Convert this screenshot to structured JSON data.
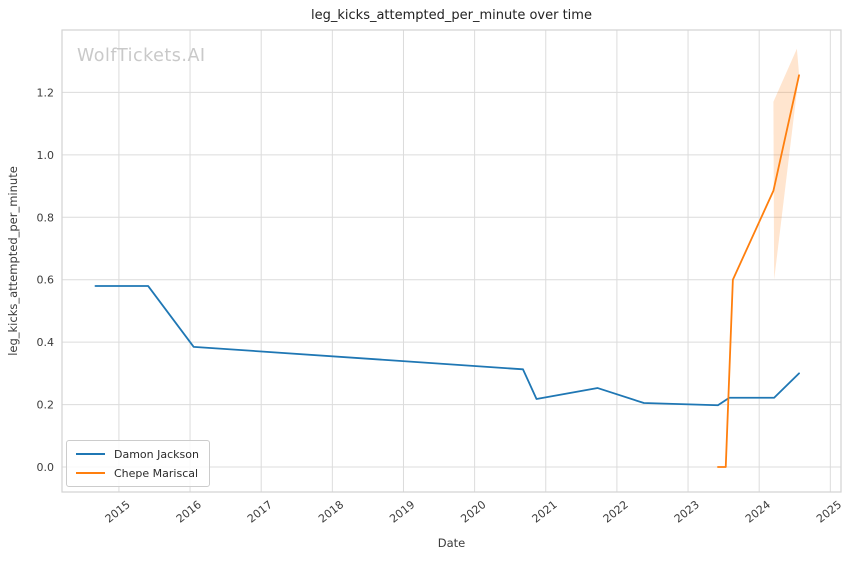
{
  "page": {
    "watermark": "WolfTickets.AI"
  },
  "chart_data": {
    "type": "line",
    "title": "leg_kicks_attempted_per_minute over time",
    "xlabel": "Date",
    "ylabel": "leg_kicks_attempted_per_minute",
    "xlim": [
      2014.2,
      2025.15
    ],
    "ylim": [
      -0.08,
      1.4
    ],
    "x_ticks": [
      2015,
      2016,
      2017,
      2018,
      2019,
      2020,
      2021,
      2022,
      2023,
      2024,
      2025
    ],
    "y_ticks": [
      0.0,
      0.2,
      0.4,
      0.6,
      0.8,
      1.0,
      1.2
    ],
    "grid": true,
    "grid_color": "#dcdcdc",
    "spine_color": "#d3d3d3",
    "tick_color": "#3c3c3c",
    "legend_position": "lower-left",
    "series": [
      {
        "name": "Damon Jackson",
        "color": "#1f77b4",
        "points": [
          [
            2014.67,
            0.58
          ],
          [
            2015.41,
            0.58
          ],
          [
            2016.05,
            0.385
          ],
          [
            2020.68,
            0.313
          ],
          [
            2020.87,
            0.218
          ],
          [
            2021.73,
            0.253
          ],
          [
            2022.38,
            0.205
          ],
          [
            2023.42,
            0.198
          ],
          [
            2023.58,
            0.222
          ],
          [
            2024.21,
            0.222
          ],
          [
            2024.56,
            0.3
          ]
        ]
      },
      {
        "name": "Chepe Mariscal",
        "color": "#ff7f0e",
        "points": [
          [
            2023.42,
            0.0
          ],
          [
            2023.53,
            0.0
          ],
          [
            2023.63,
            0.6
          ],
          [
            2024.2,
            0.885
          ],
          [
            2024.56,
            1.255
          ]
        ],
        "ci_band": {
          "polygon": [
            [
              2024.2,
              1.17
            ],
            [
              2024.53,
              1.34
            ],
            [
              2024.56,
              1.26
            ],
            [
              2024.21,
              0.6
            ]
          ],
          "opacity": 0.2
        }
      }
    ]
  },
  "legend": {
    "items": [
      {
        "label": "Damon Jackson",
        "color": "#1f77b4"
      },
      {
        "label": "Chepe Mariscal",
        "color": "#ff7f0e"
      }
    ]
  }
}
